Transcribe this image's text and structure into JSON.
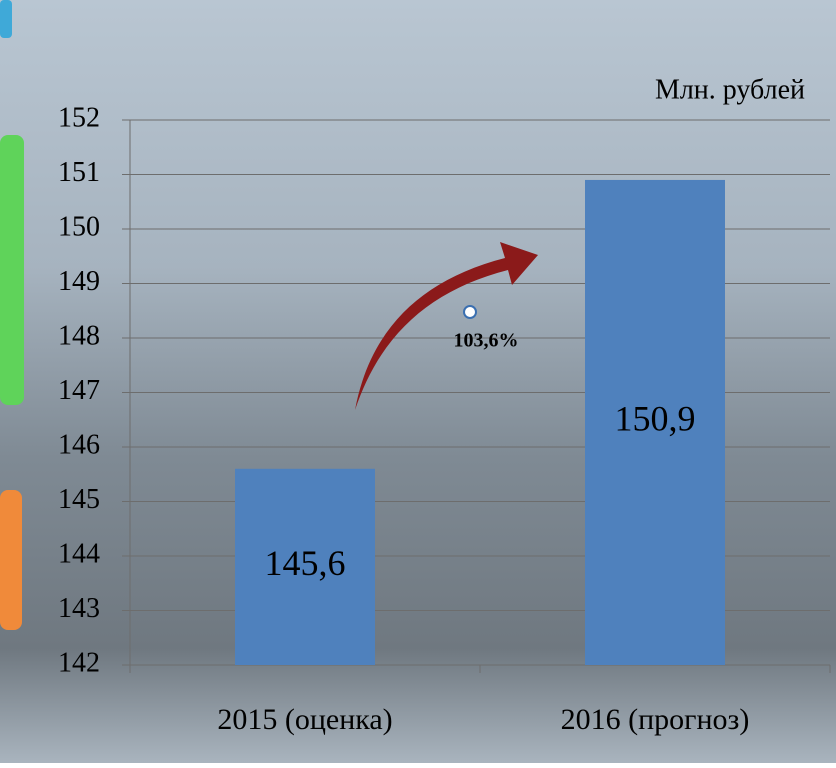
{
  "chart_data": {
    "type": "bar",
    "unit_label": "Млн. рублей",
    "annotation": "103,6%",
    "categories": [
      "2015 (оценка)",
      "2016 (прогноз)"
    ],
    "values": [
      145.6,
      150.9
    ],
    "value_labels": [
      "145,6",
      "150,9"
    ],
    "color": "#4f81bd",
    "ylim": [
      142,
      152
    ],
    "yticks": [
      142,
      143,
      144,
      145,
      146,
      147,
      148,
      149,
      150,
      151,
      152
    ],
    "grid": true
  }
}
